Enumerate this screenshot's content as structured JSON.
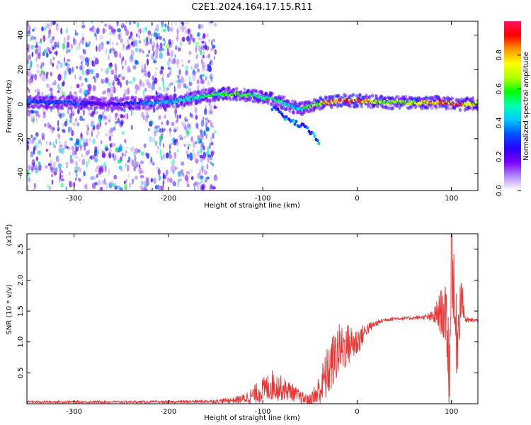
{
  "figure_title": "C2E1.2024.164.17.15.R11",
  "chart_data": [
    {
      "type": "heatmap",
      "xlabel": "Height of straight line (km)",
      "ylabel": "Frequency (Hz)",
      "xlim": [
        -350,
        128
      ],
      "ylim": [
        -50,
        48
      ],
      "xticks": [
        -300,
        -200,
        -100,
        0,
        100
      ],
      "yticks": [
        -40,
        -20,
        0,
        20,
        40
      ],
      "colorbar": {
        "label": "Normalized spectral amplitude",
        "range": [
          0.0,
          1.0
        ],
        "ticks": [
          "0.0",
          "0.2",
          "0.4",
          "0.6",
          "0.8"
        ],
        "tick_values": [
          0.0,
          0.2,
          0.4,
          0.6,
          0.8
        ],
        "colors": [
          "#ffffff",
          "#b48cff",
          "#7a00ff",
          "#2b00ff",
          "#0050ff",
          "#00c8ff",
          "#00ffb0",
          "#00ff00",
          "#b4ff00",
          "#ffff00",
          "#ff9900",
          "#ff0000",
          "#ff1060"
        ]
      },
      "ridge": {
        "x": [
          -350,
          -330,
          -300,
          -270,
          -210,
          -190,
          -150,
          -130,
          -110,
          -90,
          -75,
          -60,
          -45,
          -35,
          -20,
          0,
          30,
          60,
          90,
          110,
          128
        ],
        "frequency_hz": [
          2,
          1,
          1,
          0,
          1,
          2,
          6,
          6,
          5,
          3,
          0,
          -3,
          0,
          1,
          2,
          2,
          1,
          1,
          1,
          0,
          0
        ],
        "peak_amplitude": [
          0.4,
          0.35,
          0.4,
          0.2,
          0.45,
          0.5,
          0.6,
          0.65,
          0.6,
          0.6,
          0.55,
          0.5,
          0.7,
          0.85,
          0.9,
          0.95,
          0.7,
          0.75,
          0.9,
          0.95,
          0.7
        ]
      },
      "branch": {
        "x": [
          -90,
          -80,
          -70,
          -60,
          -50,
          -40
        ],
        "frequency_hz": [
          -2,
          -6,
          -10,
          -12,
          -16,
          -22
        ]
      },
      "noise_regions": [
        {
          "x_range": [
            -350,
            -150
          ],
          "frequency_range": [
            -50,
            48
          ],
          "level": 0.25
        }
      ]
    },
    {
      "type": "line",
      "xlabel": "Height of straight line (km)",
      "ylabel": "SNR (10 * v/v)",
      "y_multiplier_label": "(x10",
      "y_multiplier_exp": "4",
      "y_multiplier_close": ")",
      "xlim": [
        -350,
        128
      ],
      "ylim": [
        0,
        2.75
      ],
      "xticks": [
        -300,
        -200,
        -100,
        0,
        100
      ],
      "yticks": [
        "0.5",
        "1.0",
        "1.5",
        "2.0",
        "2.5"
      ],
      "ytick_values": [
        0.5,
        1.0,
        1.5,
        2.0,
        2.5
      ],
      "series": [
        {
          "color": "#ee3333",
          "x": [
            -350,
            -300,
            -250,
            -200,
            -150,
            -130,
            -120,
            -110,
            -100,
            -90,
            -80,
            -70,
            -60,
            -50,
            -40,
            -30,
            -20,
            -10,
            0,
            10,
            20,
            30,
            40,
            50,
            60,
            70,
            80,
            90,
            95,
            98,
            100,
            103,
            106,
            110,
            115,
            120,
            128
          ],
          "y": [
            0.03,
            0.03,
            0.03,
            0.03,
            0.04,
            0.06,
            0.08,
            0.14,
            0.22,
            0.3,
            0.25,
            0.2,
            0.1,
            0.05,
            0.2,
            0.55,
            0.85,
            0.95,
            1.0,
            1.2,
            1.3,
            1.36,
            1.38,
            1.38,
            1.39,
            1.4,
            1.4,
            1.5,
            1.3,
            0.5,
            2.75,
            1.4,
            1.0,
            1.8,
            1.35,
            1.35,
            1.35
          ],
          "noise_amplitude": [
            0.02,
            0.02,
            0.02,
            0.02,
            0.03,
            0.05,
            0.08,
            0.15,
            0.2,
            0.25,
            0.2,
            0.15,
            0.1,
            0.1,
            0.3,
            0.45,
            0.45,
            0.35,
            0.25,
            0.1,
            0.05,
            0.03,
            0.03,
            0.03,
            0.03,
            0.03,
            0.1,
            0.4,
            0.6,
            0.8,
            0.9,
            0.8,
            0.6,
            0.4,
            0.05,
            0.04,
            0.03
          ]
        }
      ]
    }
  ]
}
